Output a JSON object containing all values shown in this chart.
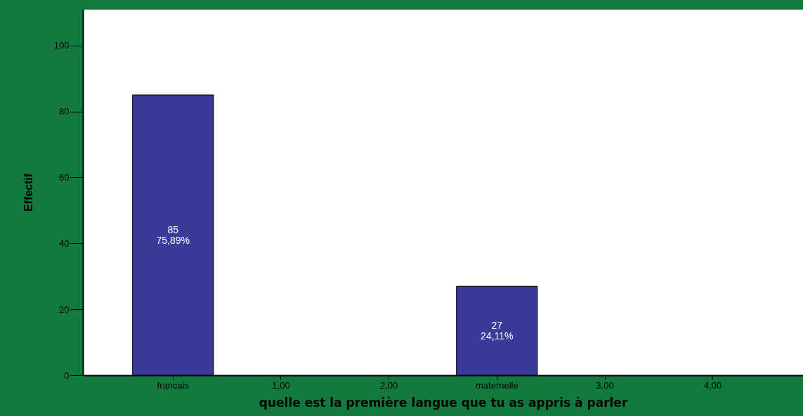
{
  "chart_data": {
    "type": "bar",
    "xlabel": "quelle est la première langue que tu as appris à parler",
    "ylabel": "Effectif",
    "categories": [
      "francais",
      "1,00",
      "2,00",
      "maternelle",
      "3,00",
      "4,00"
    ],
    "values": [
      85,
      null,
      null,
      27,
      null,
      null
    ],
    "value_labels": [
      "85\n75,89%",
      null,
      null,
      "27\n24,11%",
      null,
      null
    ],
    "color": "#3a3a98",
    "ylim": [
      0,
      111
    ],
    "yticks": [
      0,
      20,
      40,
      60,
      80,
      100
    ],
    "grid": false
  }
}
